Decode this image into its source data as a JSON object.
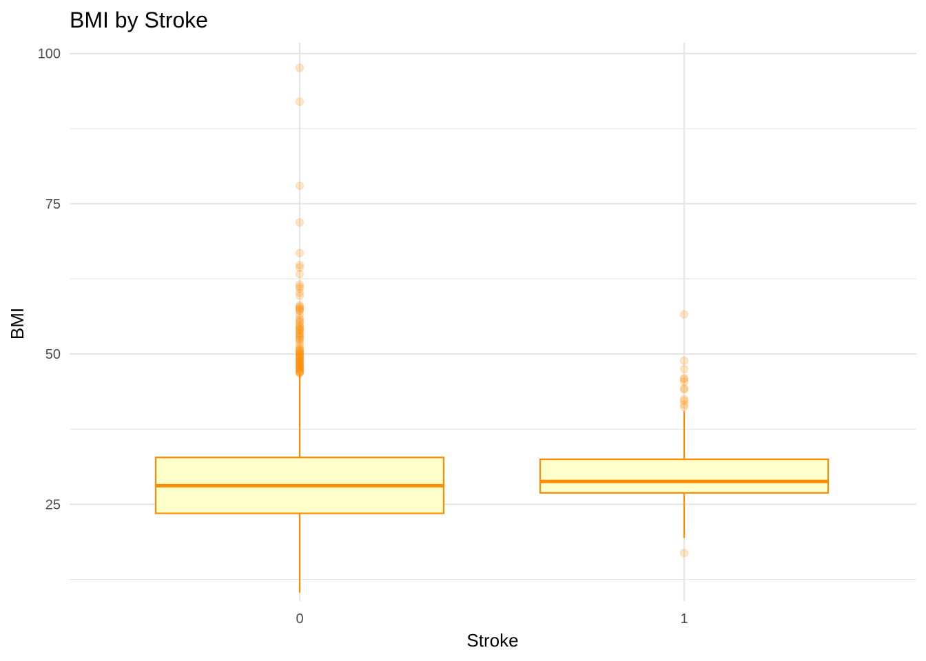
{
  "chart_data": {
    "type": "box",
    "title": "BMI by Stroke",
    "xlabel": "Stroke",
    "ylabel": "BMI",
    "categories": [
      "0",
      "1"
    ],
    "ylim": [
      8.9,
      101.8
    ],
    "yticks": [
      25,
      50,
      75,
      100
    ],
    "grid": true,
    "legend": "none",
    "colors": {
      "box_fill": "#ffffcc",
      "box_line": "#ff8c00",
      "outlier": "#ff8c00",
      "grid": "#e5e5e5"
    },
    "boxes": [
      {
        "category": "0",
        "min": 10.3,
        "q1": 23.5,
        "median": 28.1,
        "q3": 32.8,
        "max": 46.7,
        "outliers": [
          97.6,
          92.0,
          78.0,
          71.9,
          66.8,
          64.8,
          64.4,
          63.3,
          61.6,
          61.2,
          60.9,
          60.2,
          59.7,
          58.1,
          57.9,
          57.7,
          57.5,
          57.3,
          57.2,
          56.6,
          56.0,
          55.7,
          55.4,
          55.2,
          54.7,
          54.6,
          54.3,
          54.1,
          54.0,
          53.9,
          53.5,
          53.4,
          53.1,
          52.9,
          52.8,
          52.5,
          52.3,
          51.9,
          51.5,
          51.0,
          50.8,
          50.6,
          50.5,
          50.4,
          50.2,
          50.1,
          49.9,
          49.8,
          49.6,
          49.5,
          49.4,
          49.2,
          49.0,
          48.9,
          48.8,
          48.7,
          48.5,
          48.4,
          48.3,
          48.2,
          48.0,
          47.9,
          47.8,
          47.6,
          47.5,
          47.4,
          47.3,
          47.1,
          47.0,
          46.9,
          46.8
        ]
      },
      {
        "category": "1",
        "min": 19.4,
        "q1": 26.9,
        "median": 28.8,
        "q3": 32.5,
        "max": 40.5,
        "outliers": [
          56.6,
          48.9,
          47.5,
          46.0,
          45.8,
          45.4,
          44.3,
          44.1,
          42.5,
          42.2,
          41.6,
          41.2,
          16.9
        ]
      }
    ]
  }
}
